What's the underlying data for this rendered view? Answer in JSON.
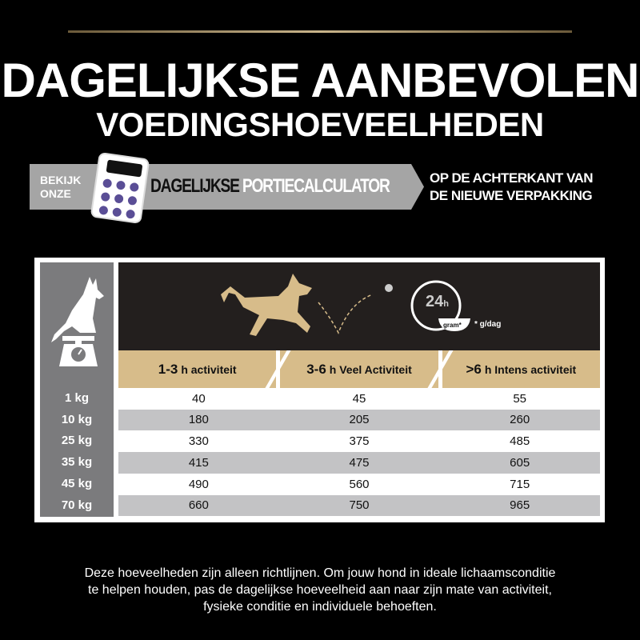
{
  "title": {
    "line1": "DAGELIJKSE AANBEVOLEN",
    "line2": "VOEDINGSHOEVEELHEDEN"
  },
  "banner": {
    "lead_line1": "BEKIJK",
    "lead_line2": "ONZE",
    "name_part1": "DAGELIJKSE",
    "name_part2": "PORTIECALCULATOR",
    "note_line1": "OP DE ACHTERKANT VAN",
    "note_line2": "DE NIEUWE VERPAKKING"
  },
  "icons": {
    "clock_label": "24",
    "clock_unit": "h",
    "bowl_label": "gram*",
    "unit_note": "* g/dag"
  },
  "table": {
    "headers": [
      {
        "num": "1-3",
        "text": "h activiteit"
      },
      {
        "num": "3-6",
        "text": "h Veel Activiteit"
      },
      {
        "num": ">6",
        "text": "h Intens activiteit"
      }
    ],
    "rows": [
      {
        "weight": "1 kg",
        "values": [
          "40",
          "45",
          "55"
        ]
      },
      {
        "weight": "10 kg",
        "values": [
          "180",
          "205",
          "260"
        ]
      },
      {
        "weight": "25 kg",
        "values": [
          "330",
          "375",
          "485"
        ]
      },
      {
        "weight": "35 kg",
        "values": [
          "415",
          "475",
          "605"
        ]
      },
      {
        "weight": "45 kg",
        "values": [
          "490",
          "560",
          "715"
        ]
      },
      {
        "weight": "70 kg",
        "values": [
          "660",
          "750",
          "965"
        ]
      }
    ]
  },
  "footer": {
    "line1": "Deze hoeveelheden zijn alleen richtlijnen. Om jouw hond in ideale lichaamsconditie",
    "line2": "te helpen houden, pas de dagelijkse hoeveelheid aan naar zijn mate van activiteit,",
    "line3": "fysieke conditie en individuele behoeften."
  },
  "colors": {
    "gold": "#d7bc8a",
    "gray": "#7b7b7d",
    "calculator_keys": "#5a4e96"
  }
}
